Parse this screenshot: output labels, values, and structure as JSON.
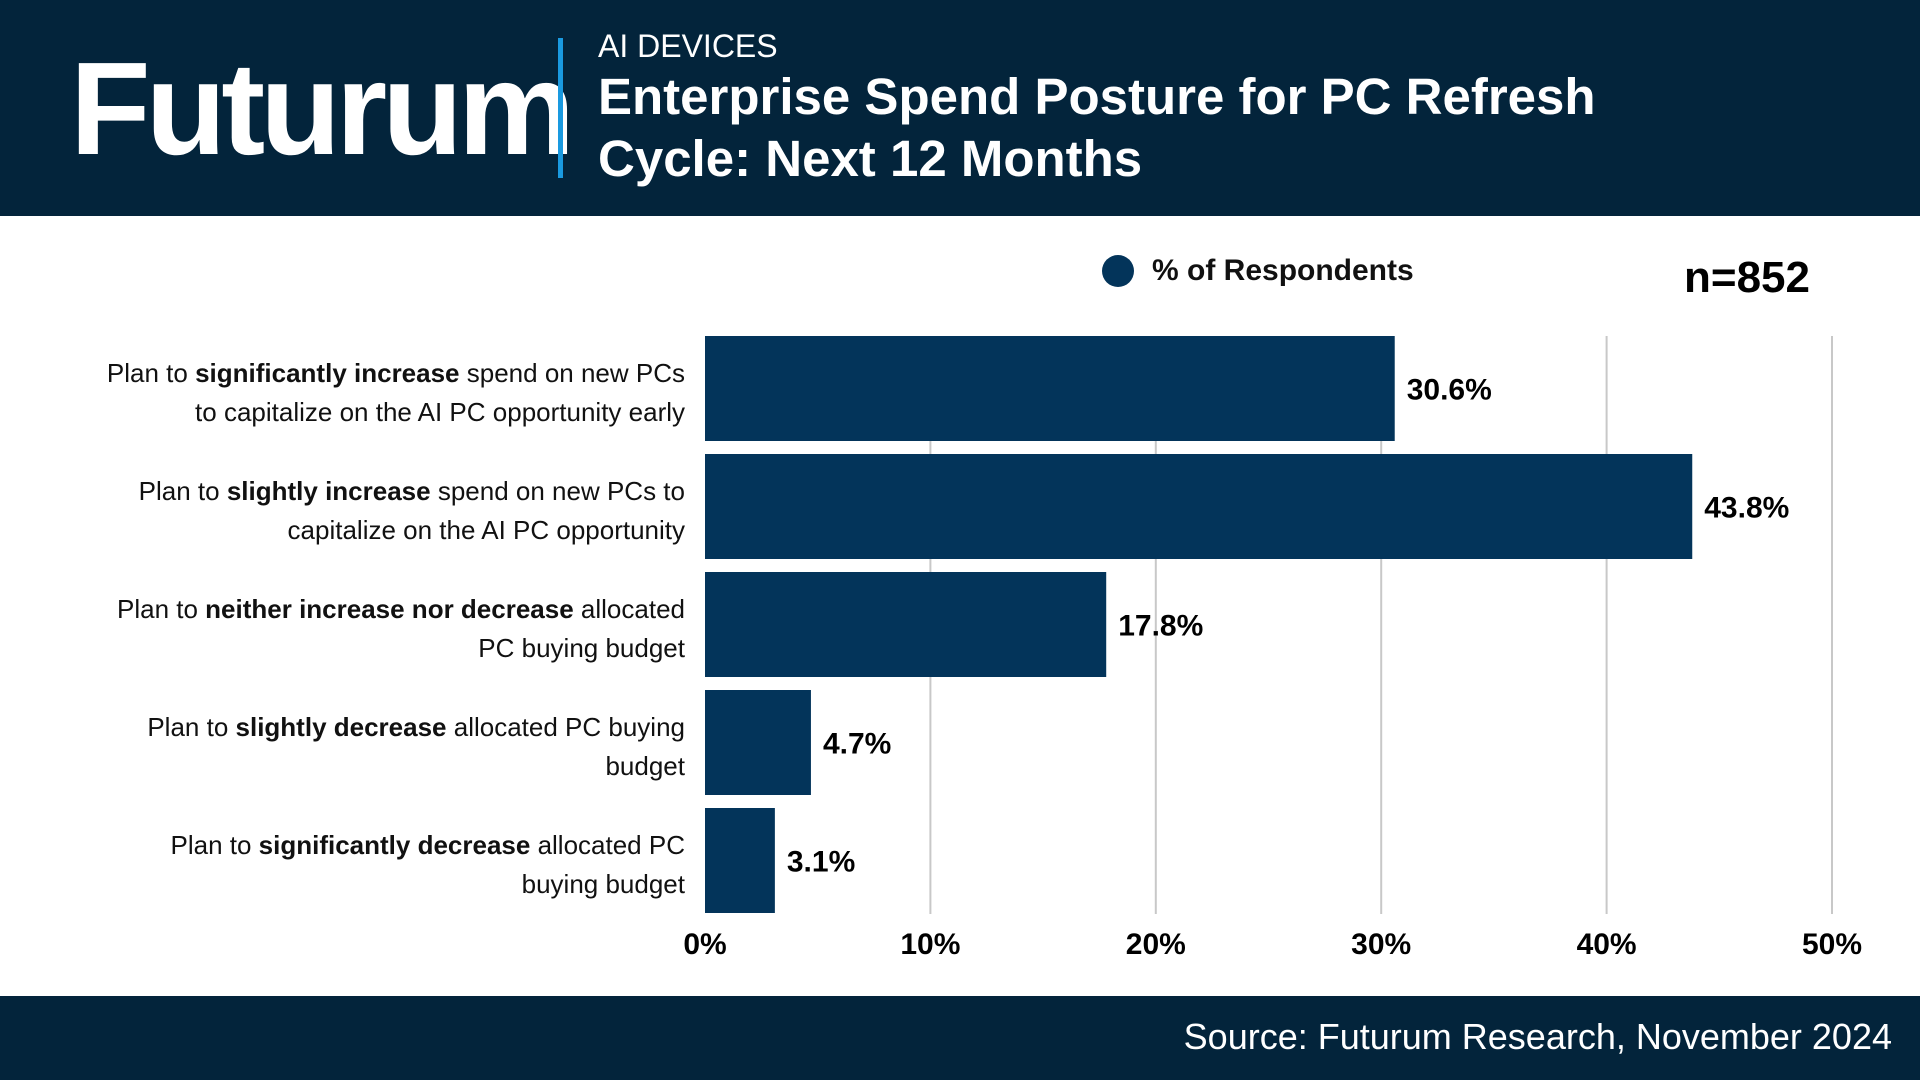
{
  "header": {
    "logo": "Futurum",
    "kicker": "AI DEVICES",
    "title": "Enterprise Spend Posture for PC Refresh Cycle: Next 12 Months"
  },
  "footer": {
    "source": "Source: Futurum Research, November 2024"
  },
  "colors": {
    "header_bg": "#03243b",
    "bar": "#03345a",
    "accent": "#1a9ae0",
    "grid": "#c8c8c8"
  },
  "chart_data": {
    "type": "bar",
    "orientation": "horizontal",
    "title": "Enterprise Spend Posture for PC Refresh Cycle: Next 12 Months",
    "sample_size": "n=852",
    "legend": {
      "label": "% of Respondents",
      "position": "top"
    },
    "categories": [
      {
        "parts": [
          {
            "text": "Plan to ",
            "bold": false
          },
          {
            "text": "significantly increase",
            "bold": true
          },
          {
            "text": " spend on new PCs",
            "bold": false
          }
        ],
        "line2": "to capitalize on the AI PC opportunity early"
      },
      {
        "parts": [
          {
            "text": "Plan to ",
            "bold": false
          },
          {
            "text": "slightly increase",
            "bold": true
          },
          {
            "text": " spend on new PCs to",
            "bold": false
          }
        ],
        "line2": "capitalize on the AI PC opportunity"
      },
      {
        "parts": [
          {
            "text": "Plan to ",
            "bold": false
          },
          {
            "text": "neither increase nor decrease",
            "bold": true
          },
          {
            "text": " allocated",
            "bold": false
          }
        ],
        "line2": "PC buying budget"
      },
      {
        "parts": [
          {
            "text": "Plan to ",
            "bold": false
          },
          {
            "text": "slightly decrease",
            "bold": true
          },
          {
            "text": " allocated PC buying",
            "bold": false
          }
        ],
        "line2": "budget"
      },
      {
        "parts": [
          {
            "text": "Plan to ",
            "bold": false
          },
          {
            "text": "significantly decrease",
            "bold": true
          },
          {
            "text": " allocated PC",
            "bold": false
          }
        ],
        "line2": "buying budget"
      }
    ],
    "values": [
      30.6,
      43.8,
      17.8,
      4.7,
      3.1
    ],
    "value_labels": [
      "30.6%",
      "43.8%",
      "17.8%",
      "4.7%",
      "3.1%"
    ],
    "xlim": [
      0,
      50
    ],
    "xticks": [
      0,
      10,
      20,
      30,
      40,
      50
    ],
    "xtick_labels": [
      "0%",
      "10%",
      "20%",
      "30%",
      "40%",
      "50%"
    ],
    "grid": true
  }
}
